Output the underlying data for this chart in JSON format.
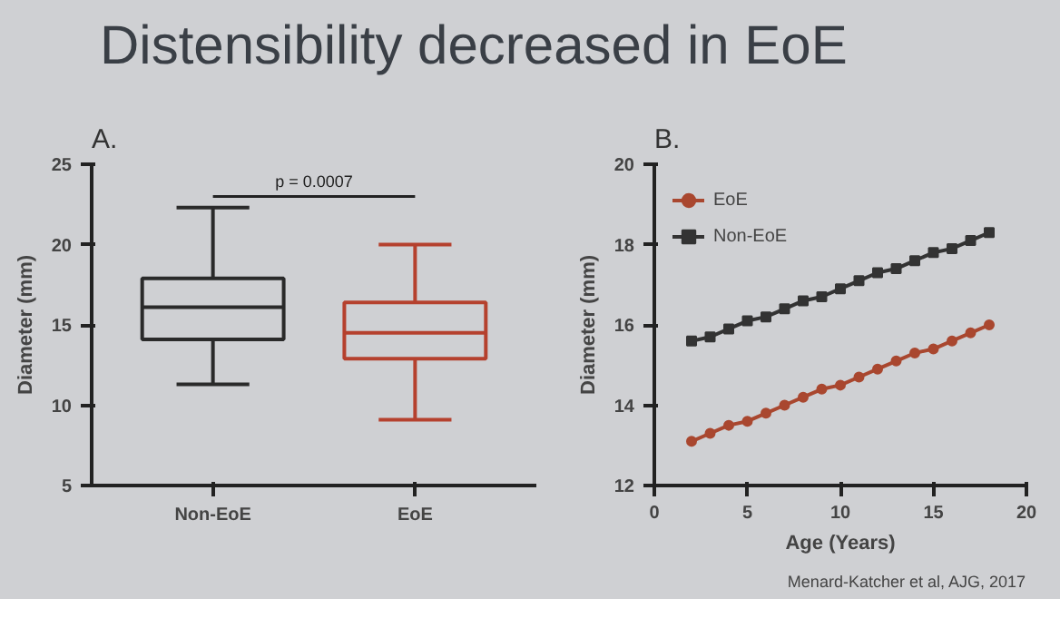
{
  "chart_data": [
    {
      "type": "box",
      "title": "Distensibility decreased in EoE",
      "subtitle": "A.",
      "ylabel": "Diameter (mm)",
      "categories": [
        "Non-EoE",
        "EoE"
      ],
      "colors": [
        "#2a2a2a",
        "#b5412e"
      ],
      "boxes": [
        {
          "low": 11.3,
          "q1": 14.1,
          "median": 16.1,
          "q3": 17.9,
          "high": 22.3
        },
        {
          "low": 9.1,
          "q1": 12.9,
          "median": 14.5,
          "q3": 16.4,
          "high": 20.0
        }
      ],
      "ylim": [
        5,
        25
      ],
      "yticks": [
        5,
        10,
        15,
        20,
        25
      ],
      "grid": false,
      "annotations": [
        "p = 0.0007"
      ]
    },
    {
      "type": "line",
      "subtitle": "B.",
      "xlabel": "Age (Years)",
      "ylabel": "Diameter (mm)",
      "x": [
        2,
        3,
        4,
        5,
        6,
        7,
        8,
        9,
        10,
        11,
        12,
        13,
        14,
        15,
        16,
        17,
        18
      ],
      "series": [
        {
          "name": "EoE",
          "color": "#a9472f",
          "marker": "circle",
          "values": [
            13.1,
            13.3,
            13.5,
            13.6,
            13.8,
            14.0,
            14.2,
            14.4,
            14.5,
            14.7,
            14.9,
            15.1,
            15.3,
            15.4,
            15.6,
            15.8,
            16.0
          ]
        },
        {
          "name": "Non-EoE",
          "color": "#333333",
          "marker": "square",
          "values": [
            15.6,
            15.7,
            15.9,
            16.1,
            16.2,
            16.4,
            16.6,
            16.7,
            16.9,
            17.1,
            17.3,
            17.4,
            17.6,
            17.8,
            17.9,
            18.1,
            18.3
          ]
        }
      ],
      "xlim": [
        0,
        20
      ],
      "xticks": [
        0,
        5,
        10,
        15,
        20
      ],
      "ylim": [
        12,
        20
      ],
      "yticks": [
        12,
        14,
        16,
        18,
        20
      ],
      "grid": false,
      "legend": "top left",
      "line_style": "solid",
      "annotations": [
        "Menard-Katcher et al, AJG, 2017"
      ]
    }
  ]
}
